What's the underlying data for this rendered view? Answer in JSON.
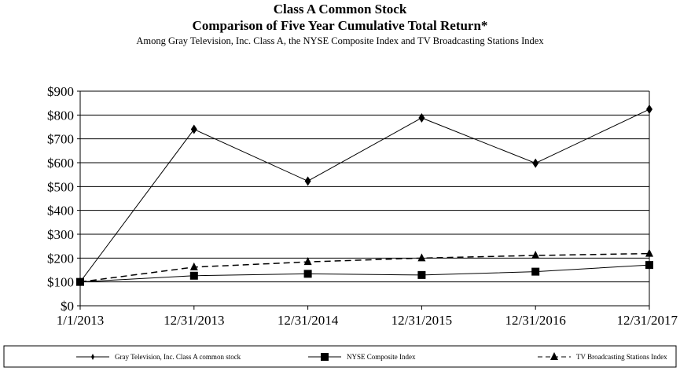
{
  "chart_data": {
    "type": "line",
    "title": "Class A Common Stock",
    "subtitle": "Comparison of Five Year Cumulative Total Return*",
    "subtitle2": "Among Gray Television, Inc. Class A, the NYSE Composite Index and TV Broadcasting Stations Index",
    "categories": [
      "1/1/2013",
      "12/31/2013",
      "12/31/2014",
      "12/31/2015",
      "12/31/2016",
      "12/31/2017"
    ],
    "ylim": [
      0,
      900
    ],
    "yticks": [
      "$0",
      "$100",
      "$200",
      "$300",
      "$400",
      "$500",
      "$600",
      "$700",
      "$800",
      "$900"
    ],
    "grid": true,
    "legend_position": "bottom",
    "series": [
      {
        "name": "Gray Television, Inc. Class A common stock",
        "marker": "diamond",
        "dash": false,
        "values": [
          100,
          740,
          523,
          788,
          598,
          824
        ]
      },
      {
        "name": "NYSE Composite Index",
        "marker": "square",
        "dash": false,
        "values": [
          100,
          126,
          134,
          129,
          143,
          171
        ]
      },
      {
        "name": "TV Broadcasting Stations Index",
        "marker": "triangle",
        "dash": true,
        "values": [
          100,
          162,
          184,
          200,
          211,
          219
        ]
      }
    ]
  }
}
